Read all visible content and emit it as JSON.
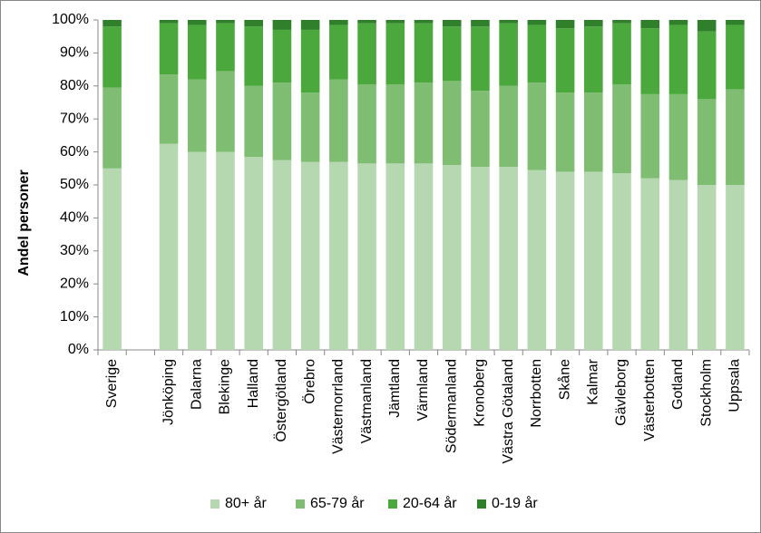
{
  "chart_data": {
    "type": "stacked_bar",
    "y_label": "Andel personer",
    "categories": [
      "Sverige",
      null,
      "Jönköping",
      "Dalarna",
      "Blekinge",
      "Halland",
      "Östergötland",
      "Örebro",
      "Västernorrland",
      "Västmanland",
      "Jämtland",
      "Värmland",
      "Södermanland",
      "Kronoberg",
      "Västra Götaland",
      "Norrbotten",
      "Skåne",
      "Kalmar",
      "Gävleborg",
      "Västerbotten",
      "Gotland",
      "Stockholm",
      "Uppsala"
    ],
    "series": [
      {
        "name": "80+ år",
        "color": "#b5d8b0",
        "values": [
          55,
          null,
          62.5,
          60,
          60,
          58.5,
          57.5,
          57,
          57,
          56.5,
          56.5,
          56.5,
          56,
          55.5,
          55.5,
          54.5,
          54,
          54,
          53.5,
          52,
          51.5,
          50,
          50
        ]
      },
      {
        "name": "65-79 år",
        "color": "#7fbd72",
        "values": [
          24.5,
          null,
          21,
          22,
          24.5,
          21.5,
          23.5,
          21,
          25,
          24,
          24,
          24.5,
          25.5,
          23,
          24.5,
          26.5,
          24,
          24,
          27,
          25.5,
          26,
          26,
          29
        ]
      },
      {
        "name": "20-64 år",
        "color": "#4ba83c",
        "values": [
          18.5,
          null,
          15.5,
          16.5,
          14.5,
          18,
          16,
          19,
          16.5,
          18.5,
          18.5,
          18,
          16.5,
          19.5,
          19,
          17.5,
          19.5,
          20,
          18.5,
          20,
          21,
          20.5,
          19.5
        ]
      },
      {
        "name": "0-19 år",
        "color": "#2f7f2b",
        "values": [
          2,
          null,
          1,
          1.5,
          1,
          2,
          3,
          3,
          1.5,
          1,
          1,
          1,
          2,
          2,
          1,
          1.5,
          2.5,
          2,
          1,
          2.5,
          1.5,
          3.5,
          1.5
        ]
      }
    ],
    "ylim": [
      0,
      100
    ],
    "yticks": [
      {
        "value": 0,
        "label": "0%"
      },
      {
        "value": 10,
        "label": "10%"
      },
      {
        "value": 20,
        "label": "20%"
      },
      {
        "value": 30,
        "label": "30%"
      },
      {
        "value": 40,
        "label": "40%"
      },
      {
        "value": 50,
        "label": "50%"
      },
      {
        "value": 60,
        "label": "60%"
      },
      {
        "value": 70,
        "label": "70%"
      },
      {
        "value": 80,
        "label": "80%"
      },
      {
        "value": 90,
        "label": "90%"
      },
      {
        "value": 100,
        "label": "100%"
      }
    ],
    "legend": "bottom"
  }
}
